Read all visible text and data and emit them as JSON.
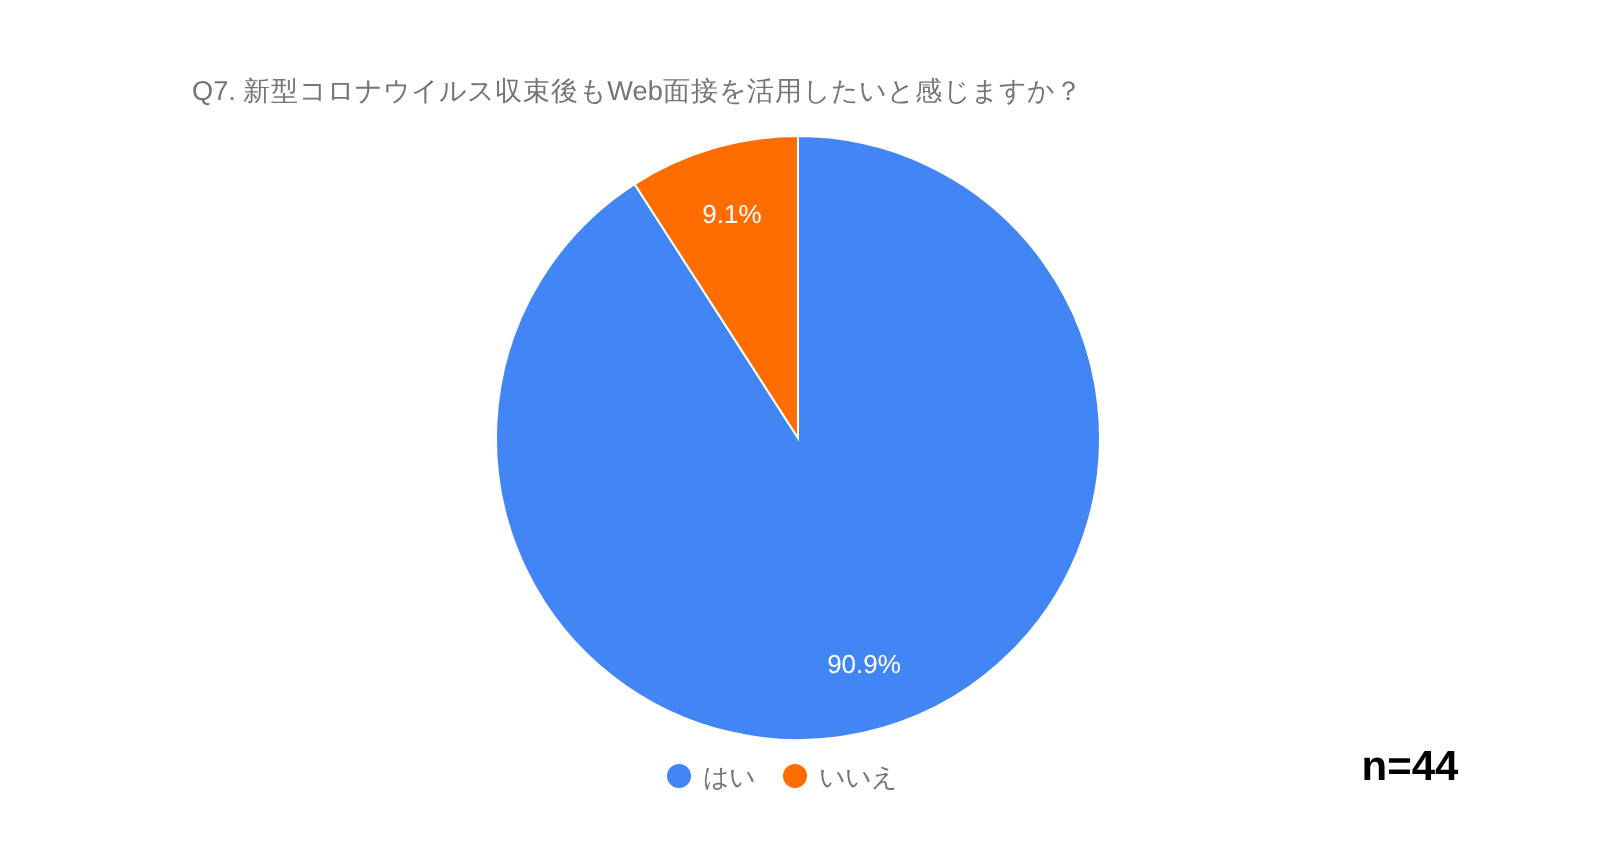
{
  "chart_data": {
    "type": "pie",
    "title": "Q7. 新型コロナウイルス収束後もWeb面接を活用したいと感じますか？",
    "categories": [
      "はい",
      "いいえ"
    ],
    "values": [
      90.9,
      9.1
    ],
    "colors": [
      "#4285f4",
      "#ff6d01"
    ],
    "value_labels": [
      "90.9%",
      "9.1%"
    ],
    "legend": "bottom",
    "annotations": [
      "n=44"
    ]
  }
}
